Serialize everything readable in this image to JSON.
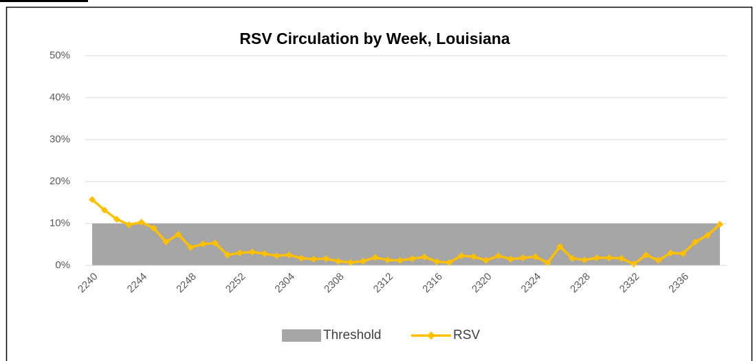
{
  "chart_data": {
    "type": "line",
    "title": "RSV Circulation by Week, Louisiana",
    "categories": [
      "2240",
      null,
      null,
      null,
      "2244",
      null,
      null,
      null,
      "2248",
      null,
      null,
      null,
      "2252",
      null,
      null,
      null,
      "2304",
      null,
      null,
      null,
      "2308",
      null,
      null,
      null,
      "2312",
      null,
      null,
      null,
      "2316",
      null,
      null,
      null,
      "2320",
      null,
      null,
      null,
      "2324",
      null,
      null,
      null,
      "2328",
      null,
      null,
      null,
      "2332",
      null,
      null,
      null,
      "2336",
      null,
      null,
      null
    ],
    "series": [
      {
        "name": "Threshold",
        "kind": "area",
        "color": "#a6a6a6",
        "values": [
          10,
          10,
          10,
          10,
          10,
          10,
          10,
          10,
          10,
          10,
          10,
          10,
          10,
          10,
          10,
          10,
          10,
          10,
          10,
          10,
          10,
          10,
          10,
          10,
          10,
          10,
          10,
          10,
          10,
          10,
          10,
          10,
          10,
          10,
          10,
          10,
          10,
          10,
          10,
          10,
          10,
          10,
          10,
          10,
          10,
          10,
          10,
          10,
          10,
          10,
          10,
          10
        ]
      },
      {
        "name": "RSV",
        "kind": "line",
        "color": "#ffc000",
        "values": [
          15.7,
          13.2,
          11,
          9.7,
          10.3,
          8.9,
          5.6,
          7.4,
          4.3,
          5.1,
          5.3,
          2.5,
          3.0,
          3.2,
          2.8,
          2.3,
          2.5,
          1.7,
          1.5,
          1.6,
          1.0,
          0.7,
          1.0,
          1.9,
          1.3,
          1.2,
          1.6,
          2.0,
          0.9,
          0.7,
          2.3,
          2.1,
          1.2,
          2.3,
          1.5,
          1.8,
          2.1,
          0.6,
          4.5,
          1.7,
          1.3,
          1.8,
          1.8,
          1.7,
          0.3,
          2.5,
          1.2,
          3.0,
          2.8,
          5.6,
          7.2,
          9.8
        ]
      }
    ],
    "ylim": [
      0,
      50
    ],
    "yticks": [
      {
        "value": 0,
        "label": "0%"
      },
      {
        "value": 10,
        "label": "10%"
      },
      {
        "value": 20,
        "label": "20%"
      },
      {
        "value": 30,
        "label": "30%"
      },
      {
        "value": 40,
        "label": "40%"
      },
      {
        "value": 50,
        "label": "50%"
      }
    ],
    "grid": true
  }
}
